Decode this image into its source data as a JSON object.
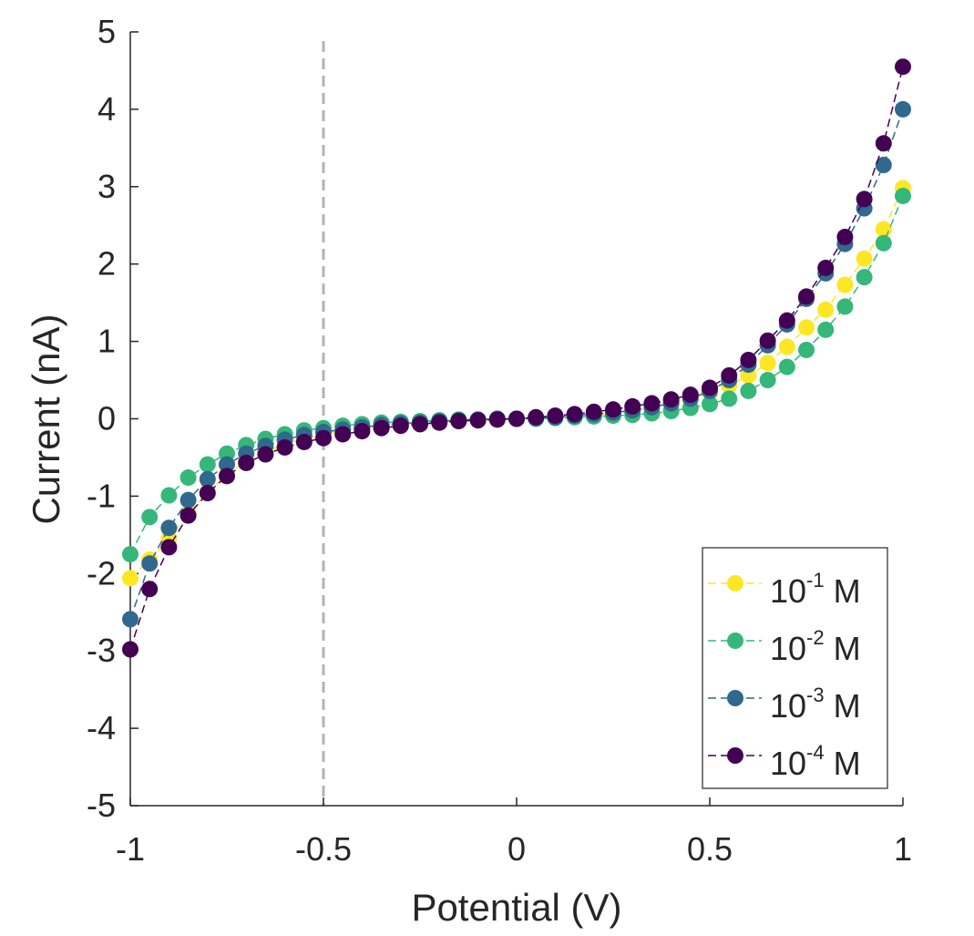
{
  "chart_data": {
    "type": "line",
    "title": "",
    "xlabel": "Potential (V)",
    "ylabel": "Current (nA)",
    "xlim": [
      -1,
      1
    ],
    "ylim": [
      -5,
      5
    ],
    "xticks": [
      -1,
      -0.5,
      0,
      0.5,
      1
    ],
    "xtick_labels": [
      "-1",
      "-0.5",
      "0",
      "0.5",
      "1"
    ],
    "yticks": [
      -5,
      -4,
      -3,
      -2,
      -1,
      0,
      1,
      2,
      3,
      4,
      5
    ],
    "ytick_labels": [
      "-5",
      "-4",
      "-3",
      "-2",
      "-1",
      "0",
      "1",
      "2",
      "3",
      "4",
      "5"
    ],
    "reference_line": {
      "orientation": "vertical",
      "x": -0.5,
      "style": "dashed",
      "color": "#b3b3b3"
    },
    "legend_position": "bottom-right",
    "x": [
      -1,
      -0.95,
      -0.9,
      -0.85,
      -0.8,
      -0.75,
      -0.7,
      -0.65,
      -0.6,
      -0.55,
      -0.5,
      -0.45,
      -0.4,
      -0.35,
      -0.3,
      -0.25,
      -0.2,
      -0.15,
      -0.1,
      -0.05,
      0,
      0.05,
      0.1,
      0.15,
      0.2,
      0.25,
      0.3,
      0.35,
      0.4,
      0.45,
      0.5,
      0.55,
      0.6,
      0.65,
      0.7,
      0.75,
      0.8,
      0.85,
      0.9,
      0.95,
      1
    ],
    "series": [
      {
        "name": "10^-1 M",
        "base": "10",
        "exponent": "-1",
        "unit": "M",
        "color": "#fde725",
        "values": [
          -2.06,
          -1.82,
          -1.55,
          -1.22,
          -0.95,
          -0.72,
          -0.55,
          -0.43,
          -0.33,
          -0.25,
          -0.2,
          -0.15,
          -0.12,
          -0.09,
          -0.07,
          -0.05,
          -0.04,
          -0.03,
          -0.02,
          -0.01,
          0,
          0.01,
          0.02,
          0.03,
          0.05,
          0.07,
          0.1,
          0.14,
          0.2,
          0.26,
          0.34,
          0.43,
          0.56,
          0.72,
          0.93,
          1.18,
          1.41,
          1.73,
          2.07,
          2.45,
          2.98
        ]
      },
      {
        "name": "10^-2 M",
        "base": "10",
        "exponent": "-2",
        "unit": "M",
        "color": "#35b779",
        "values": [
          -1.75,
          -1.27,
          -0.99,
          -0.76,
          -0.59,
          -0.45,
          -0.34,
          -0.26,
          -0.2,
          -0.15,
          -0.12,
          -0.09,
          -0.07,
          -0.05,
          -0.04,
          -0.03,
          -0.02,
          -0.01,
          -0.01,
          0,
          0,
          0,
          0.01,
          0.02,
          0.03,
          0.04,
          0.05,
          0.07,
          0.1,
          0.14,
          0.19,
          0.26,
          0.36,
          0.5,
          0.67,
          0.89,
          1.15,
          1.45,
          1.83,
          2.27,
          2.88
        ]
      },
      {
        "name": "10^-3 M",
        "base": "10",
        "exponent": "-3",
        "unit": "M",
        "color": "#31688e",
        "values": [
          -2.59,
          -1.87,
          -1.41,
          -1.05,
          -0.78,
          -0.59,
          -0.45,
          -0.35,
          -0.27,
          -0.21,
          -0.17,
          -0.14,
          -0.11,
          -0.08,
          -0.06,
          -0.05,
          -0.03,
          -0.02,
          -0.01,
          0,
          0,
          0.01,
          0.02,
          0.04,
          0.06,
          0.08,
          0.11,
          0.15,
          0.2,
          0.26,
          0.36,
          0.5,
          0.7,
          0.95,
          1.22,
          1.55,
          1.88,
          2.26,
          2.72,
          3.28,
          4.0
        ]
      },
      {
        "name": "10^-4 M",
        "base": "10",
        "exponent": "-4",
        "unit": "M",
        "color": "#440154",
        "values": [
          -2.98,
          -2.2,
          -1.66,
          -1.25,
          -0.96,
          -0.74,
          -0.57,
          -0.46,
          -0.37,
          -0.3,
          -0.25,
          -0.2,
          -0.16,
          -0.12,
          -0.09,
          -0.07,
          -0.05,
          -0.03,
          -0.02,
          -0.01,
          0,
          0.02,
          0.04,
          0.06,
          0.09,
          0.12,
          0.16,
          0.2,
          0.25,
          0.31,
          0.4,
          0.56,
          0.76,
          1.01,
          1.27,
          1.58,
          1.95,
          2.35,
          2.84,
          3.56,
          4.55
        ]
      }
    ]
  }
}
